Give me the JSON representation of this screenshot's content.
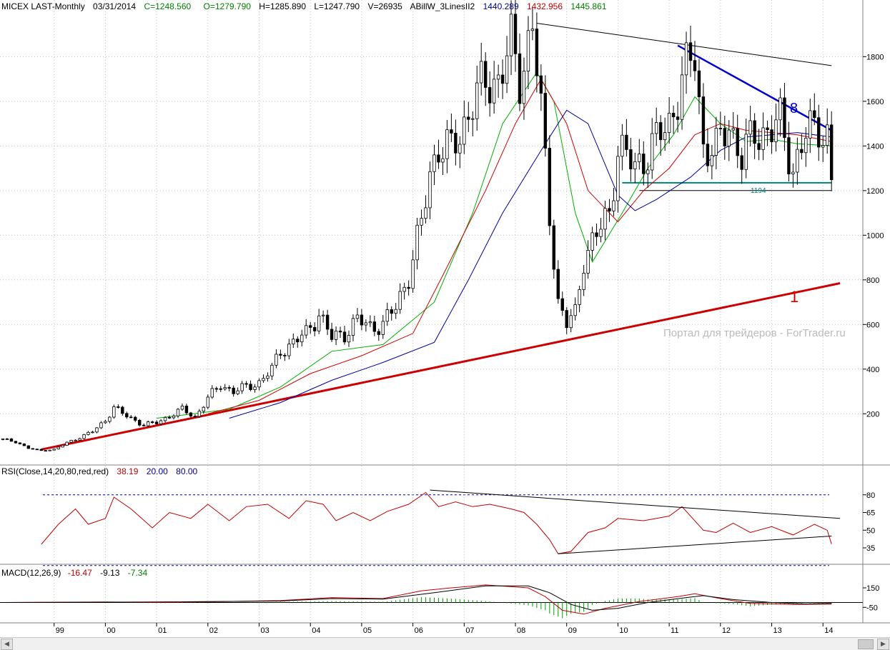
{
  "header": {
    "symbol": "MICEX LAST-Monthly",
    "date": "03/31/2014",
    "close": "C=1248.560",
    "open": "O=1279.790",
    "high": "H=1285.890",
    "low": "L=1247.790",
    "volume": "V=26935",
    "indicator_name": "ABillW_3LinesII2",
    "ind1": "1440.289",
    "ind2": "1432.956",
    "ind3": "1445.861"
  },
  "watermark": "Портал для трейдеров - ForTrader.ru",
  "annotations": {
    "line1_label": "1",
    "line8_label": "8",
    "support_label": "1194"
  },
  "rsi_header": {
    "name": "RSI(Close,14,20,80,red,red)",
    "value": "38.19",
    "lower": "20.00",
    "upper": "80.00"
  },
  "macd_header": {
    "name": "MACD(12,26,9)",
    "macd": "-16.47",
    "signal": "-9.13",
    "hist": "-7.34"
  },
  "colors": {
    "bull": "#ffffff",
    "bear": "#000000",
    "ma_fast": "#00b000",
    "ma_mid": "#d00000",
    "ma_slow": "#0000a0",
    "trend1": "#cc0000",
    "trend8": "#0000cc",
    "support": "#008080",
    "grid": "#c0c0c0"
  },
  "chart_data": [
    {
      "type": "candlestick",
      "title": "MICEX LAST-Monthly",
      "x_range": [
        "1998-01",
        "2014-03"
      ],
      "x_ticks": [
        "99",
        "00",
        "01",
        "02",
        "03",
        "04",
        "05",
        "06",
        "07",
        "08",
        "09",
        "10",
        "11",
        "12",
        "13",
        "14"
      ],
      "y_ticks": [
        200,
        400,
        600,
        800,
        1000,
        1200,
        1400,
        1600,
        1800
      ],
      "ylim": [
        -20,
        1990
      ],
      "grid": true,
      "close_path": [
        [
          "1998-01",
          85
        ],
        [
          "1998-04",
          75
        ],
        [
          "1998-07",
          45
        ],
        [
          "1998-10",
          35
        ],
        [
          "1999-01",
          40
        ],
        [
          "1999-04",
          70
        ],
        [
          "1999-07",
          95
        ],
        [
          "1999-10",
          120
        ],
        [
          "2000-01",
          170
        ],
        [
          "2000-03",
          230
        ],
        [
          "2000-05",
          200
        ],
        [
          "2000-07",
          180
        ],
        [
          "2000-10",
          150
        ],
        [
          "2001-01",
          160
        ],
        [
          "2001-04",
          190
        ],
        [
          "2001-07",
          220
        ],
        [
          "2001-10",
          185
        ],
        [
          "2002-01",
          270
        ],
        [
          "2002-04",
          330
        ],
        [
          "2002-07",
          300
        ],
        [
          "2002-10",
          320
        ],
        [
          "2003-01",
          340
        ],
        [
          "2003-04",
          400
        ],
        [
          "2003-06",
          480
        ],
        [
          "2003-09",
          520
        ],
        [
          "2003-12",
          560
        ],
        [
          "2004-03",
          650
        ],
        [
          "2004-06",
          540
        ],
        [
          "2004-09",
          560
        ],
        [
          "2004-12",
          620
        ],
        [
          "2005-03",
          590
        ],
        [
          "2005-06",
          600
        ],
        [
          "2005-09",
          680
        ],
        [
          "2005-12",
          820
        ],
        [
          "2006-03",
          1050
        ],
        [
          "2006-05",
          1280
        ],
        [
          "2006-07",
          1400
        ],
        [
          "2006-10",
          1380
        ],
        [
          "2006-12",
          1450
        ],
        [
          "2007-03",
          1600
        ],
        [
          "2007-06",
          1680
        ],
        [
          "2007-09",
          1700
        ],
        [
          "2007-12",
          1850
        ],
        [
          "2008-02",
          1700
        ],
        [
          "2008-05",
          1950
        ],
        [
          "2008-07",
          1550
        ],
        [
          "2008-09",
          1100
        ],
        [
          "2008-11",
          700
        ],
        [
          "2009-01",
          600
        ],
        [
          "2009-03",
          650
        ],
        [
          "2009-05",
          900
        ],
        [
          "2009-08",
          1000
        ],
        [
          "2009-11",
          1100
        ],
        [
          "2010-01",
          1400
        ],
        [
          "2010-05",
          1300
        ],
        [
          "2010-09",
          1400
        ],
        [
          "2011-01",
          1500
        ],
        [
          "2011-04",
          1700
        ],
        [
          "2011-07",
          1800
        ],
        [
          "2011-09",
          1400
        ],
        [
          "2011-12",
          1380
        ],
        [
          "2012-03",
          1500
        ],
        [
          "2012-06",
          1350
        ],
        [
          "2012-09",
          1450
        ],
        [
          "2012-12",
          1470
        ],
        [
          "2013-03",
          1500
        ],
        [
          "2013-06",
          1300
        ],
        [
          "2013-09",
          1450
        ],
        [
          "2013-12",
          1490
        ],
        [
          "2014-02",
          1450
        ],
        [
          "2014-03",
          1248.56
        ]
      ],
      "moving_averages": [
        {
          "name": "fast",
          "color": "#00b000",
          "values": [
            [
              "2001-01",
              180
            ],
            [
              "2002-06",
              220
            ],
            [
              "2003-06",
              320
            ],
            [
              "2004-06",
              480
            ],
            [
              "2005-06",
              510
            ],
            [
              "2006-06",
              700
            ],
            [
              "2007-03",
              1100
            ],
            [
              "2007-10",
              1500
            ],
            [
              "2008-06",
              1730
            ],
            [
              "2008-10",
              1600
            ],
            [
              "2009-03",
              1100
            ],
            [
              "2009-07",
              880
            ],
            [
              "2010-02",
              1100
            ],
            [
              "2010-08",
              1300
            ],
            [
              "2011-02",
              1450
            ],
            [
              "2011-07",
              1620
            ],
            [
              "2012-01",
              1500
            ],
            [
              "2012-07",
              1420
            ],
            [
              "2013-01",
              1430
            ],
            [
              "2013-07",
              1410
            ],
            [
              "2014-03",
              1400
            ]
          ]
        },
        {
          "name": "mid",
          "color": "#d00000",
          "values": [
            [
              "2002-01",
              200
            ],
            [
              "2003-01",
              260
            ],
            [
              "2004-01",
              380
            ],
            [
              "2005-01",
              460
            ],
            [
              "2006-01",
              560
            ],
            [
              "2006-08",
              820
            ],
            [
              "2007-06",
              1200
            ],
            [
              "2008-01",
              1500
            ],
            [
              "2008-07",
              1700
            ],
            [
              "2009-01",
              1500
            ],
            [
              "2009-06",
              1200
            ],
            [
              "2010-01",
              1060
            ],
            [
              "2010-07",
              1200
            ],
            [
              "2011-01",
              1300
            ],
            [
              "2011-07",
              1450
            ],
            [
              "2012-01",
              1500
            ],
            [
              "2012-07",
              1470
            ],
            [
              "2013-07",
              1450
            ],
            [
              "2014-03",
              1420
            ]
          ]
        },
        {
          "name": "slow",
          "color": "#0000a0",
          "values": [
            [
              "2002-06",
              180
            ],
            [
              "2003-06",
              250
            ],
            [
              "2004-06",
              350
            ],
            [
              "2005-06",
              430
            ],
            [
              "2006-06",
              520
            ],
            [
              "2007-02",
              800
            ],
            [
              "2007-10",
              1100
            ],
            [
              "2008-07",
              1380
            ],
            [
              "2009-01",
              1560
            ],
            [
              "2009-06",
              1500
            ],
            [
              "2010-01",
              1180
            ],
            [
              "2010-05",
              1110
            ],
            [
              "2010-10",
              1160
            ],
            [
              "2011-06",
              1260
            ],
            [
              "2012-01",
              1380
            ],
            [
              "2012-07",
              1440
            ],
            [
              "2013-07",
              1460
            ],
            [
              "2014-03",
              1440
            ]
          ]
        }
      ],
      "trendlines": [
        {
          "name": "1",
          "points": [
            [
              "1998-10",
              40
            ],
            [
              "2014-05",
              785
            ]
          ]
        },
        {
          "name": "8",
          "points": [
            [
              "2011-03",
              1850
            ],
            [
              "2014-03",
              1470
            ]
          ]
        },
        {
          "name": "upper",
          "points": [
            [
              "2008-06",
              1950
            ],
            [
              "2014-03",
              1760
            ]
          ]
        },
        {
          "name": "support",
          "points": [
            [
              "2010-02",
              1235
            ],
            [
              "2014-03",
              1235
            ]
          ]
        },
        {
          "name": "1194",
          "points": [
            [
              "2010-06",
              1200
            ],
            [
              "2014-03",
              1200
            ]
          ]
        }
      ]
    },
    {
      "type": "line",
      "title": "RSI(Close,14,20,80,red,red)",
      "y_ticks": [
        35,
        50,
        65,
        80
      ],
      "levels": [
        20,
        80
      ],
      "ylim": [
        15,
        95
      ],
      "values": [
        [
          "1998-10",
          38
        ],
        [
          "1999-02",
          55
        ],
        [
          "1999-06",
          68
        ],
        [
          "1999-09",
          55
        ],
        [
          "2000-01",
          60
        ],
        [
          "2000-03",
          78
        ],
        [
          "2000-07",
          68
        ],
        [
          "2000-12",
          52
        ],
        [
          "2001-04",
          65
        ],
        [
          "2001-09",
          60
        ],
        [
          "2002-01",
          72
        ],
        [
          "2002-06",
          58
        ],
        [
          "2002-10",
          70
        ],
        [
          "2003-03",
          72
        ],
        [
          "2003-08",
          60
        ],
        [
          "2003-12",
          75
        ],
        [
          "2004-04",
          72
        ],
        [
          "2004-07",
          58
        ],
        [
          "2004-11",
          65
        ],
        [
          "2005-03",
          58
        ],
        [
          "2005-07",
          66
        ],
        [
          "2005-12",
          72
        ],
        [
          "2006-04",
          82
        ],
        [
          "2006-07",
          70
        ],
        [
          "2006-11",
          74
        ],
        [
          "2007-03",
          70
        ],
        [
          "2007-07",
          72
        ],
        [
          "2007-12",
          68
        ],
        [
          "2008-03",
          65
        ],
        [
          "2008-06",
          55
        ],
        [
          "2008-09",
          42
        ],
        [
          "2008-11",
          30
        ],
        [
          "2009-02",
          32
        ],
        [
          "2009-06",
          48
        ],
        [
          "2009-10",
          52
        ],
        [
          "2010-01",
          60
        ],
        [
          "2010-07",
          58
        ],
        [
          "2011-01",
          62
        ],
        [
          "2011-04",
          70
        ],
        [
          "2011-09",
          50
        ],
        [
          "2011-12",
          48
        ],
        [
          "2012-04",
          56
        ],
        [
          "2012-08",
          48
        ],
        [
          "2013-01",
          53
        ],
        [
          "2013-06",
          46
        ],
        [
          "2013-11",
          55
        ],
        [
          "2014-02",
          50
        ],
        [
          "2014-03",
          38.19
        ]
      ],
      "trendlines": [
        {
          "points": [
            [
              "2006-05",
              84
            ],
            [
              "2014-05",
              60
            ]
          ]
        },
        {
          "points": [
            [
              "2008-11",
              30
            ],
            [
              "2014-03",
              45
            ]
          ]
        }
      ]
    },
    {
      "type": "bar",
      "title": "MACD(12,26,9)",
      "y_ticks": [
        150,
        -50
      ],
      "ylim": [
        -180,
        260
      ],
      "macd": [
        [
          "1998-01",
          0
        ],
        [
          "2000-01",
          5
        ],
        [
          "2001-01",
          0
        ],
        [
          "2002-06",
          10
        ],
        [
          "2003-06",
          20
        ],
        [
          "2004-06",
          50
        ],
        [
          "2005-06",
          40
        ],
        [
          "2006-03",
          120
        ],
        [
          "2006-10",
          150
        ],
        [
          "2007-06",
          180
        ],
        [
          "2008-04",
          150
        ],
        [
          "2008-08",
          60
        ],
        [
          "2008-12",
          -80
        ],
        [
          "2009-05",
          -120
        ],
        [
          "2009-10",
          -60
        ],
        [
          "2010-06",
          10
        ],
        [
          "2011-03",
          60
        ],
        [
          "2011-07",
          90
        ],
        [
          "2012-01",
          40
        ],
        [
          "2012-08",
          -10
        ],
        [
          "2013-06",
          -20
        ],
        [
          "2014-03",
          -16.47
        ]
      ],
      "signal": [
        [
          "1998-01",
          0
        ],
        [
          "2001-01",
          5
        ],
        [
          "2003-06",
          15
        ],
        [
          "2004-06",
          40
        ],
        [
          "2005-06",
          35
        ],
        [
          "2006-06",
          100
        ],
        [
          "2007-06",
          170
        ],
        [
          "2008-04",
          170
        ],
        [
          "2008-09",
          100
        ],
        [
          "2009-02",
          -20
        ],
        [
          "2009-07",
          -80
        ],
        [
          "2010-01",
          -60
        ],
        [
          "2010-08",
          0
        ],
        [
          "2011-05",
          50
        ],
        [
          "2011-09",
          70
        ],
        [
          "2012-04",
          30
        ],
        [
          "2013-01",
          0
        ],
        [
          "2013-09",
          -15
        ],
        [
          "2014-03",
          -9.13
        ]
      ]
    }
  ]
}
